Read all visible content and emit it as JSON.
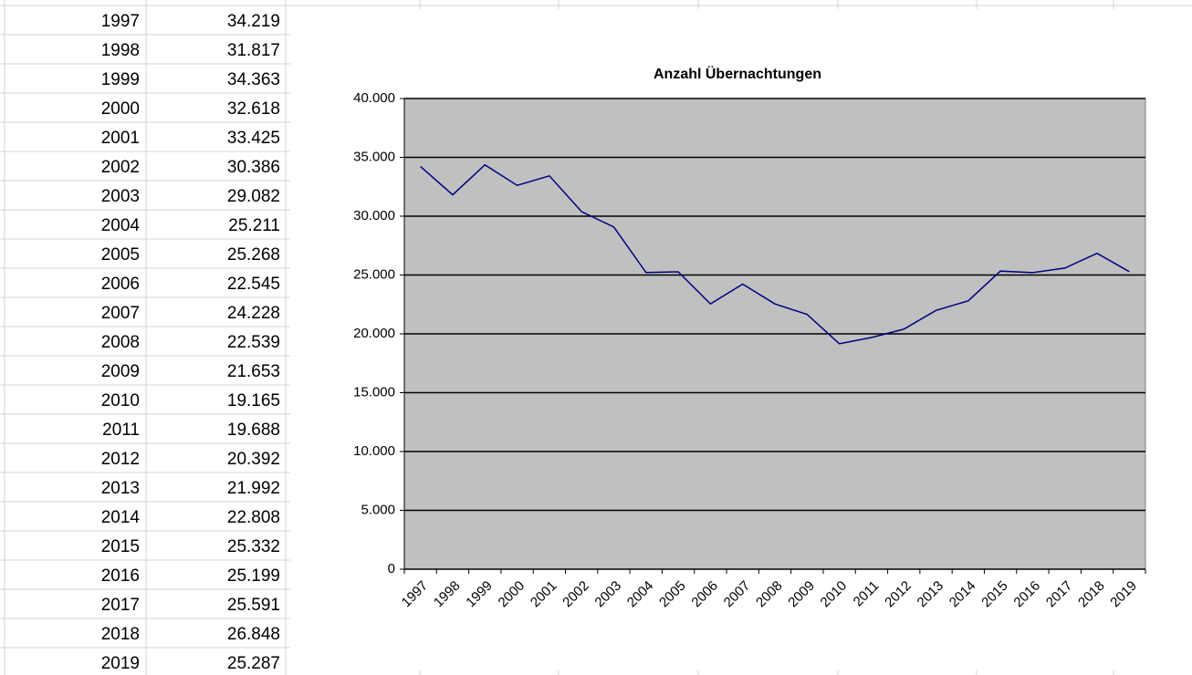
{
  "table": {
    "rows": [
      [
        "1997",
        "34.219"
      ],
      [
        "1998",
        "31.817"
      ],
      [
        "1999",
        "34.363"
      ],
      [
        "2000",
        "32.618"
      ],
      [
        "2001",
        "33.425"
      ],
      [
        "2002",
        "30.386"
      ],
      [
        "2003",
        "29.082"
      ],
      [
        "2004",
        "25.211"
      ],
      [
        "2005",
        "25.268"
      ],
      [
        "2006",
        "22.545"
      ],
      [
        "2007",
        "24.228"
      ],
      [
        "2008",
        "22.539"
      ],
      [
        "2009",
        "21.653"
      ],
      [
        "2010",
        "19.165"
      ],
      [
        "2011",
        "19.688"
      ],
      [
        "2012",
        "20.392"
      ],
      [
        "2013",
        "21.992"
      ],
      [
        "2014",
        "22.808"
      ],
      [
        "2015",
        "25.332"
      ],
      [
        "2016",
        "25.199"
      ],
      [
        "2017",
        "25.591"
      ],
      [
        "2018",
        "26.848"
      ],
      [
        "2019",
        "25.287"
      ]
    ]
  },
  "chart_data": {
    "type": "line",
    "title": "Anzahl Übernachtungen",
    "categories": [
      "1997",
      "1998",
      "1999",
      "2000",
      "2001",
      "2002",
      "2003",
      "2004",
      "2005",
      "2006",
      "2007",
      "2008",
      "2009",
      "2010",
      "2011",
      "2012",
      "2013",
      "2014",
      "2015",
      "2016",
      "2017",
      "2018",
      "2019"
    ],
    "values": [
      34219,
      31817,
      34363,
      32618,
      33425,
      30386,
      29082,
      25211,
      25268,
      22545,
      24228,
      22539,
      21653,
      19165,
      19688,
      20392,
      21992,
      22808,
      25332,
      25199,
      25591,
      26848,
      25287
    ],
    "color": "#000080",
    "plot_color": "#c0c0c0",
    "grid": true,
    "ylim": [
      0,
      40000
    ],
    "yticks": [
      0,
      {
        "value": 5000,
        "label": "5.000"
      },
      {
        "value": 10000,
        "label": "10.000"
      },
      {
        "value": 15000,
        "label": "15.000"
      },
      {
        "value": 20000,
        "label": "20.000"
      },
      {
        "value": 25000,
        "label": "25.000"
      },
      {
        "value": 30000,
        "label": "30.000"
      },
      {
        "value": 35000,
        "label": "35.000"
      },
      {
        "value": 40000,
        "label": "40.000"
      }
    ]
  }
}
